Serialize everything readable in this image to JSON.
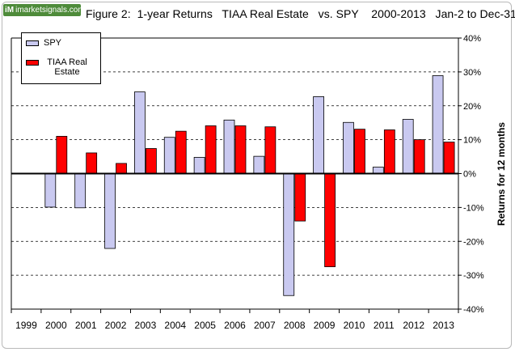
{
  "brand": {
    "logo": "iM",
    "label": "imarketsignals.com"
  },
  "chart_data": {
    "type": "bar",
    "title": "Figure 2:  1-year Returns   TIAA Real Estate   vs. SPY    2000-2013   Jan-2 to Dec-31",
    "xlabel": "",
    "ylabel": "Returns for 12 months",
    "categories": [
      "1999",
      "2000",
      "2001",
      "2002",
      "2003",
      "2004",
      "2005",
      "2006",
      "2007",
      "2008",
      "2009",
      "2010",
      "2011",
      "2012",
      "2013"
    ],
    "series": [
      {
        "name": "SPY",
        "color": "#c9c9f0",
        "values": [
          null,
          -9.9,
          -10.1,
          -22.1,
          24.1,
          10.7,
          4.8,
          15.8,
          5.1,
          -36.0,
          22.7,
          15.1,
          1.9,
          16.0,
          28.9
        ]
      },
      {
        "name": "TIAA Real Estate",
        "color": "#ff0000",
        "values": [
          null,
          11.0,
          6.1,
          3.0,
          7.4,
          12.5,
          14.1,
          14.1,
          13.8,
          -14.0,
          -27.5,
          13.1,
          12.9,
          10.0,
          9.3
        ]
      }
    ],
    "ylim": [
      -40,
      40
    ],
    "yticks": [
      40,
      30,
      20,
      10,
      0,
      -10,
      -20,
      -30,
      -40
    ],
    "ytick_labels": [
      "40%",
      "30%",
      "20%",
      "10%",
      "0%",
      "-10%",
      "-20%",
      "-30%",
      "-40%"
    ],
    "grid": "horizontal dashed",
    "legend_position": "top-left"
  }
}
